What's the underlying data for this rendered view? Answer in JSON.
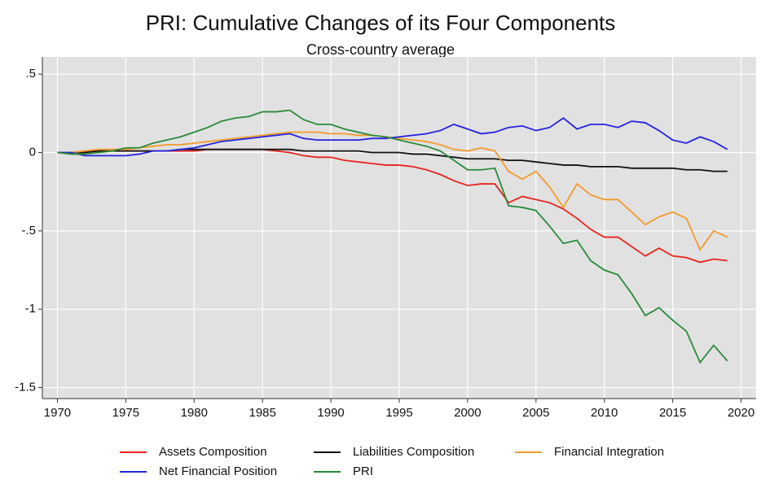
{
  "chart_data": {
    "type": "line",
    "title": "PRI: Cumulative Changes of its Four Components",
    "subtitle": "Cross-country average",
    "x": [
      1970,
      1971,
      1972,
      1973,
      1974,
      1975,
      1976,
      1977,
      1978,
      1979,
      1980,
      1981,
      1982,
      1983,
      1984,
      1985,
      1986,
      1987,
      1988,
      1989,
      1990,
      1991,
      1992,
      1993,
      1994,
      1995,
      1996,
      1997,
      1998,
      1999,
      2000,
      2001,
      2002,
      2003,
      2004,
      2005,
      2006,
      2007,
      2008,
      2009,
      2010,
      2011,
      2012,
      2013,
      2014,
      2015,
      2016,
      2017,
      2018,
      2019
    ],
    "series": [
      {
        "name": "Assets Composition",
        "color": "#e8241e",
        "values": [
          0,
          0,
          0.01,
          0.01,
          0.01,
          0.01,
          0.01,
          0.01,
          0.01,
          0.01,
          0.01,
          0.02,
          0.02,
          0.02,
          0.02,
          0.02,
          0.01,
          0,
          -0.02,
          -0.03,
          -0.03,
          -0.05,
          -0.06,
          -0.07,
          -0.08,
          -0.08,
          -0.09,
          -0.11,
          -0.14,
          -0.18,
          -0.21,
          -0.2,
          -0.2,
          -0.32,
          -0.28,
          -0.3,
          -0.32,
          -0.36,
          -0.42,
          -0.49,
          -0.54,
          -0.54,
          -0.6,
          -0.66,
          -0.61,
          -0.66,
          -0.67,
          -0.7,
          -0.68,
          -0.69
        ]
      },
      {
        "name": "Liabilities Composition",
        "color": "#111111",
        "values": [
          0,
          0,
          0,
          0.01,
          0.01,
          0.01,
          0.01,
          0.01,
          0.01,
          0.02,
          0.02,
          0.02,
          0.02,
          0.02,
          0.02,
          0.02,
          0.02,
          0.02,
          0.01,
          0.01,
          0.01,
          0.01,
          0.01,
          0,
          0,
          0,
          -0.01,
          -0.01,
          -0.02,
          -0.03,
          -0.04,
          -0.04,
          -0.04,
          -0.05,
          -0.05,
          -0.06,
          -0.07,
          -0.08,
          -0.08,
          -0.09,
          -0.09,
          -0.09,
          -0.1,
          -0.1,
          -0.1,
          -0.1,
          -0.11,
          -0.11,
          -0.12,
          -0.12
        ]
      },
      {
        "name": "Financial Integration",
        "color": "#f39a2b",
        "values": [
          0,
          0,
          0.01,
          0.02,
          0.02,
          0.02,
          0.03,
          0.04,
          0.05,
          0.05,
          0.06,
          0.07,
          0.08,
          0.09,
          0.1,
          0.11,
          0.12,
          0.13,
          0.13,
          0.13,
          0.12,
          0.12,
          0.11,
          0.11,
          0.1,
          0.09,
          0.08,
          0.07,
          0.05,
          0.02,
          0.01,
          0.03,
          0.01,
          -0.12,
          -0.17,
          -0.12,
          -0.22,
          -0.35,
          -0.2,
          -0.27,
          -0.3,
          -0.3,
          -0.38,
          -0.46,
          -0.41,
          -0.38,
          -0.42,
          -0.62,
          -0.5,
          -0.54
        ]
      },
      {
        "name": "Net Financial Position",
        "color": "#2424e0",
        "values": [
          0,
          0,
          -0.02,
          -0.02,
          -0.02,
          -0.02,
          -0.01,
          0.01,
          0.01,
          0.02,
          0.03,
          0.05,
          0.07,
          0.08,
          0.09,
          0.1,
          0.11,
          0.12,
          0.09,
          0.08,
          0.08,
          0.08,
          0.08,
          0.09,
          0.09,
          0.1,
          0.11,
          0.12,
          0.14,
          0.18,
          0.15,
          0.12,
          0.13,
          0.16,
          0.17,
          0.14,
          0.16,
          0.22,
          0.15,
          0.18,
          0.18,
          0.16,
          0.2,
          0.19,
          0.14,
          0.08,
          0.06,
          0.1,
          0.07,
          0.02
        ]
      },
      {
        "name": "PRI",
        "color": "#2a8a3a",
        "values": [
          0,
          -0.01,
          -0.01,
          0,
          0.01,
          0.03,
          0.03,
          0.06,
          0.08,
          0.1,
          0.13,
          0.16,
          0.2,
          0.22,
          0.23,
          0.26,
          0.26,
          0.27,
          0.21,
          0.18,
          0.18,
          0.15,
          0.13,
          0.11,
          0.1,
          0.08,
          0.06,
          0.04,
          0.01,
          -0.05,
          -0.11,
          -0.11,
          -0.1,
          -0.34,
          -0.35,
          -0.37,
          -0.47,
          -0.58,
          -0.56,
          -0.69,
          -0.75,
          -0.78,
          -0.9,
          -1.04,
          -0.99,
          -1.07,
          -1.14,
          -1.34,
          -1.23,
          -1.33
        ]
      }
    ],
    "xlim": [
      1968.9,
      2021.1
    ],
    "xticks": [
      1970,
      1975,
      1980,
      1985,
      1990,
      1995,
      2000,
      2005,
      2010,
      2015,
      2020
    ],
    "ylim": [
      -1.57,
      0.61
    ],
    "yticks": [
      {
        "value": 0.5,
        "label": ".5"
      },
      0,
      {
        "value": -0.5,
        "label": "-.5"
      },
      -1,
      -1.5
    ],
    "grid": true,
    "background": "#e1e1e1",
    "legend": "bottom"
  }
}
